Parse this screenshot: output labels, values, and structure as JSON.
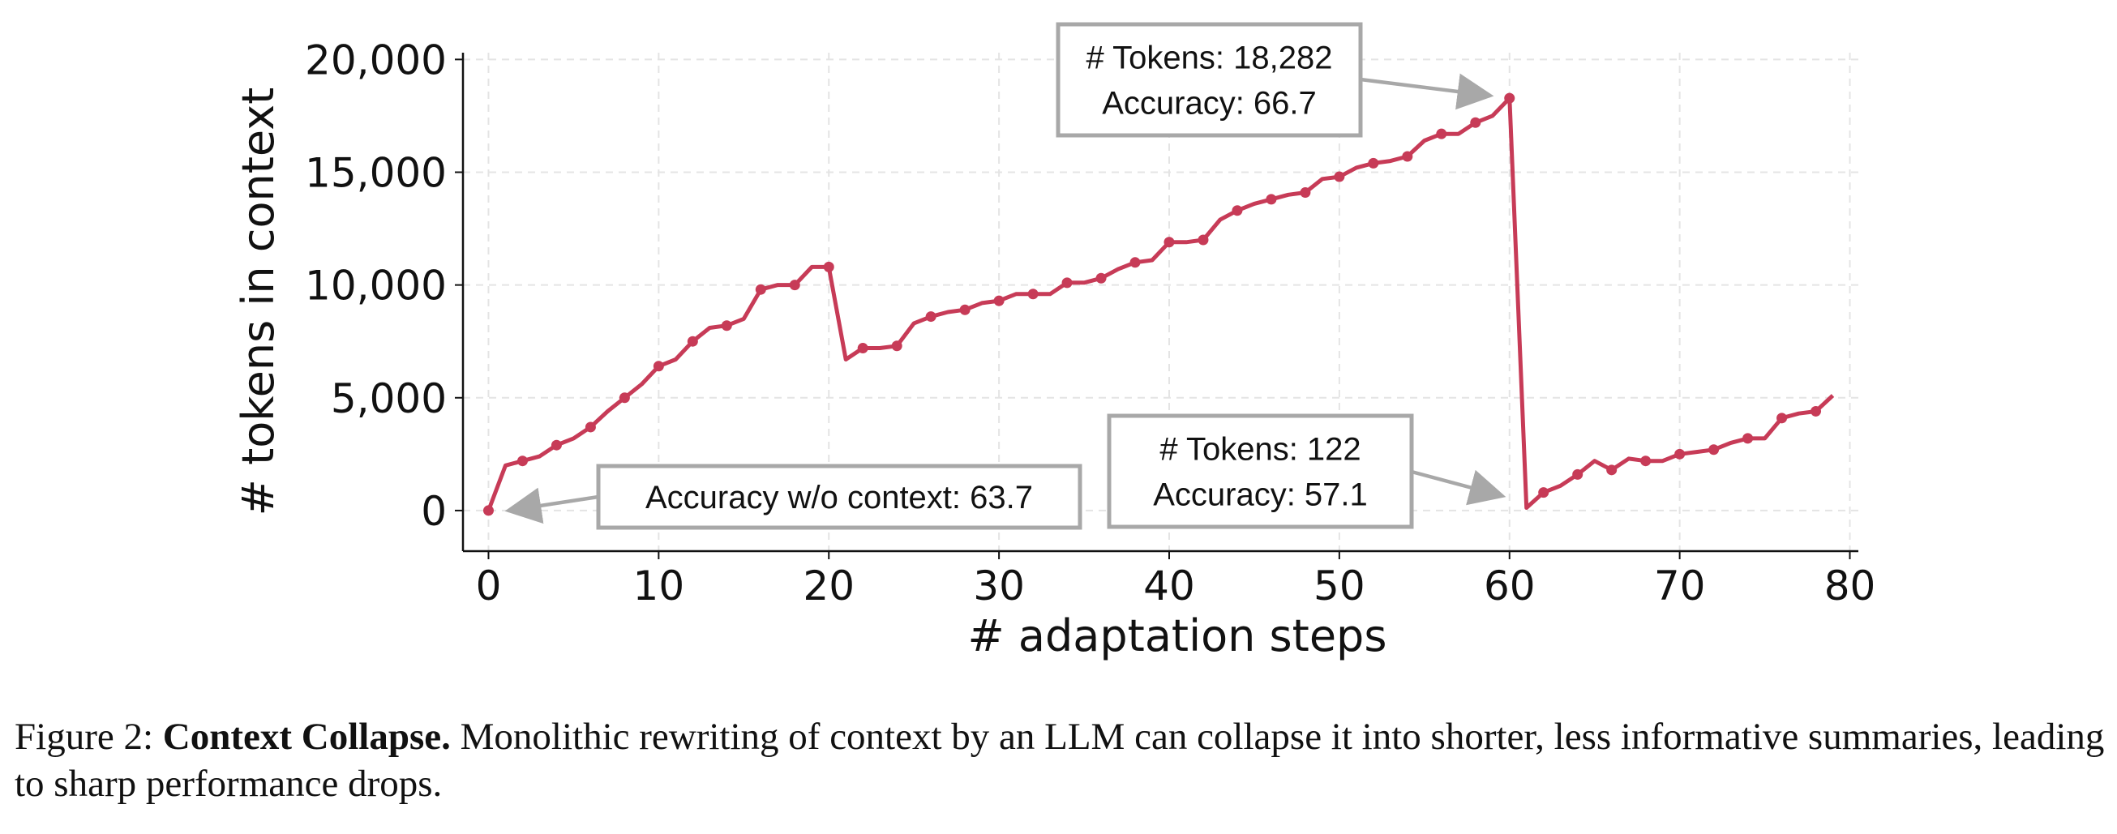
{
  "chart_data": {
    "type": "line",
    "xlabel": "# adaptation steps",
    "ylabel": "# tokens in context",
    "xlim": [
      -1.5,
      80.5
    ],
    "ylim": [
      -1800,
      20300
    ],
    "xticks": [
      0,
      10,
      20,
      30,
      40,
      50,
      60,
      70,
      80
    ],
    "yticks": [
      0,
      5000,
      10000,
      15000,
      20000
    ],
    "xtick_labels": [
      "0",
      "10",
      "20",
      "30",
      "40",
      "50",
      "60",
      "70",
      "80"
    ],
    "ytick_labels": [
      "0",
      "5,000",
      "10,000",
      "15,000",
      "20,000"
    ],
    "grid": true,
    "line_color": "#c73b57",
    "series": [
      {
        "x": [
          0,
          1,
          2,
          3,
          4,
          5,
          6,
          7,
          8,
          9,
          10,
          11,
          12,
          13,
          14,
          15,
          16,
          17,
          18,
          19,
          20,
          21,
          22,
          23,
          24,
          25,
          26,
          27,
          28,
          29,
          30,
          31,
          32,
          33,
          34,
          35,
          36,
          37,
          38,
          39,
          40,
          41,
          42,
          43,
          44,
          45,
          46,
          47,
          48,
          49,
          50,
          51,
          52,
          53,
          54,
          55,
          56,
          57,
          58,
          59,
          60,
          61,
          62,
          63,
          64,
          65,
          66,
          67,
          68,
          69,
          70,
          71,
          72,
          73,
          74,
          75,
          76,
          77,
          78,
          79
        ],
        "y": [
          0,
          2000,
          2200,
          2400,
          2900,
          3200,
          3700,
          4400,
          5000,
          5600,
          6400,
          6700,
          7500,
          8100,
          8200,
          8500,
          9800,
          10000,
          10000,
          10800,
          10800,
          6700,
          7200,
          7200,
          7300,
          8300,
          8600,
          8800,
          8900,
          9200,
          9300,
          9600,
          9600,
          9600,
          10100,
          10100,
          10300,
          10700,
          11000,
          11100,
          11900,
          11900,
          12000,
          12900,
          13300,
          13600,
          13800,
          14000,
          14100,
          14700,
          14800,
          15200,
          15400,
          15500,
          15700,
          16400,
          16700,
          16700,
          17200,
          17500,
          18282,
          122,
          800,
          1100,
          1600,
          2200,
          1800,
          2300,
          2200,
          2200,
          2500,
          2600,
          2700,
          3000,
          3200,
          3200,
          4100,
          4300,
          4400,
          5100
        ],
        "markers_at": [
          0,
          2,
          4,
          6,
          8,
          10,
          12,
          14,
          16,
          18,
          20,
          22,
          24,
          26,
          28,
          30,
          32,
          34,
          36,
          38,
          40,
          42,
          44,
          46,
          48,
          50,
          52,
          54,
          56,
          58,
          60,
          62,
          64,
          66,
          68,
          70,
          72,
          74,
          76,
          78
        ]
      }
    ],
    "annotations": [
      {
        "id": "peak",
        "lines": [
          "# Tokens: 18,282",
          "Accuracy: 66.7"
        ],
        "point": [
          60,
          18282
        ]
      },
      {
        "id": "collapse",
        "lines": [
          "# Tokens: 122",
          "Accuracy: 57.1"
        ],
        "point": [
          61,
          122
        ]
      },
      {
        "id": "baseline",
        "lines": [
          "Accuracy w/o context: 63.7"
        ],
        "point": [
          0,
          0
        ]
      }
    ]
  },
  "caption": {
    "label": "Figure 2:",
    "title": "Context Collapse.",
    "text": "Monolithic rewriting of context by an LLM can collapse it into shorter, less informative summaries, leading to sharp performance drops."
  }
}
